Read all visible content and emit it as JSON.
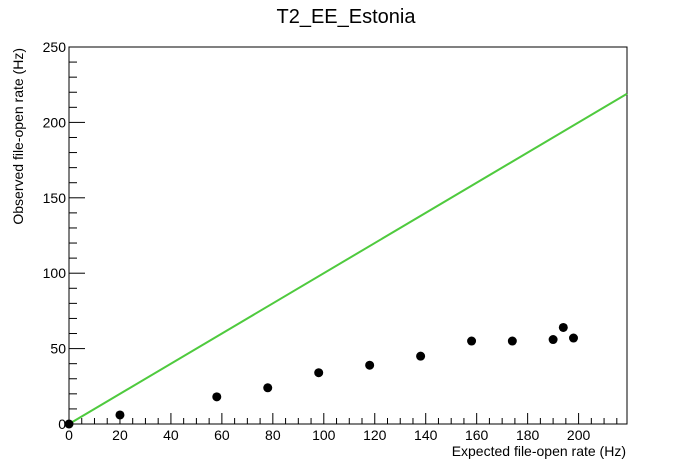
{
  "chart_data": {
    "type": "scatter",
    "title": "T2_EE_Estonia",
    "xlabel": "Expected file-open rate (Hz)",
    "ylabel": "Observed file-open rate (Hz)",
    "xlim": [
      0,
      219
    ],
    "ylim": [
      0,
      250
    ],
    "xticks": [
      0,
      20,
      40,
      60,
      80,
      100,
      120,
      140,
      160,
      180,
      200
    ],
    "yticks": [
      0,
      50,
      100,
      150,
      200,
      250
    ],
    "grid": false,
    "points": [
      {
        "x": 0,
        "y": 0
      },
      {
        "x": 20,
        "y": 6
      },
      {
        "x": 58,
        "y": 18
      },
      {
        "x": 78,
        "y": 24
      },
      {
        "x": 98,
        "y": 34
      },
      {
        "x": 118,
        "y": 39
      },
      {
        "x": 138,
        "y": 45
      },
      {
        "x": 158,
        "y": 55
      },
      {
        "x": 174,
        "y": 55
      },
      {
        "x": 190,
        "y": 56
      },
      {
        "x": 194,
        "y": 64
      },
      {
        "x": 198,
        "y": 57
      }
    ],
    "reference_line": {
      "x": [
        0,
        219
      ],
      "y": [
        0,
        219
      ],
      "color": "#4fca3e"
    },
    "marker_color": "#000000"
  }
}
